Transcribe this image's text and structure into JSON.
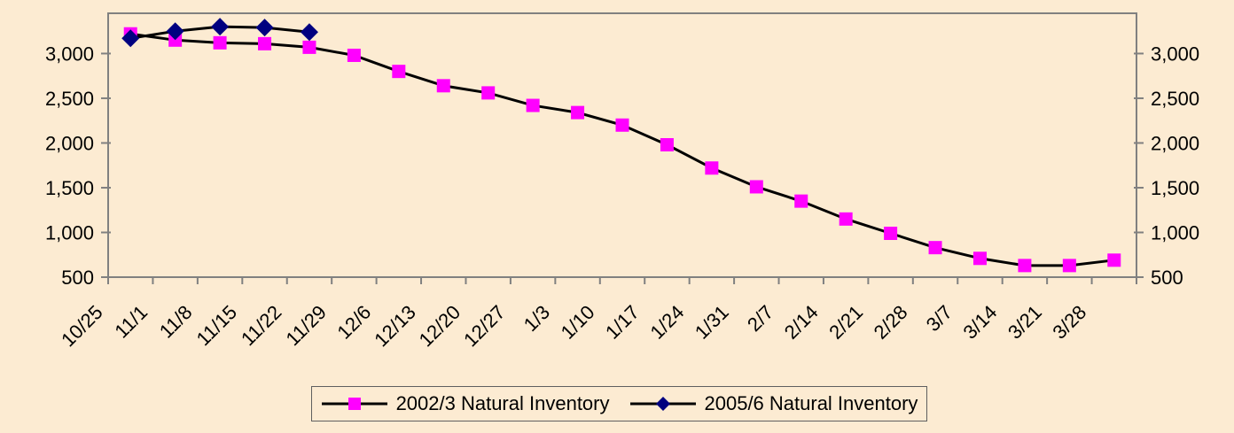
{
  "chart_data": {
    "type": "line",
    "title": "",
    "categories": [
      "10/25",
      "11/1",
      "11/8",
      "11/15",
      "11/22",
      "11/29",
      "12/6",
      "12/13",
      "12/20",
      "12/27",
      "1/3",
      "1/10",
      "1/17",
      "1/24",
      "1/31",
      "2/7",
      "2/14",
      "2/21",
      "2/28",
      "3/7",
      "3/14",
      "3/21",
      "3/28"
    ],
    "series": [
      {
        "name": "2002/3 Natural Inventory",
        "marker": "square",
        "marker_color": "#FF00FF",
        "line_color": "#000000",
        "values": [
          3220,
          3150,
          3120,
          3110,
          3070,
          2980,
          2800,
          2640,
          2560,
          2420,
          2340,
          2200,
          1980,
          1720,
          1510,
          1350,
          1150,
          990,
          830,
          710,
          630,
          630,
          690
        ]
      },
      {
        "name": "2005/6 Natural Inventory",
        "marker": "diamond",
        "marker_color": "#000080",
        "line_color": "#000000",
        "values": [
          3170,
          3250,
          3300,
          3290,
          3240,
          null,
          null,
          null,
          null,
          null,
          null,
          null,
          null,
          null,
          null,
          null,
          null,
          null,
          null,
          null,
          null,
          null,
          null
        ]
      }
    ],
    "y_axis": {
      "min": 500,
      "plot_max": 3450,
      "tick_step": 500,
      "tick_labels": [
        "500",
        "1,000",
        "1,500",
        "2,000",
        "2,500",
        "3,000"
      ],
      "sides": [
        "left",
        "right"
      ]
    },
    "x_axis": {
      "label_rotation": -45,
      "ticks_between_categories": true
    },
    "legend": {
      "position": "bottom"
    },
    "colors": {
      "background": "#FCEBD2",
      "plot_border": "#808080",
      "axis_text": "#000000",
      "series_line": "#000000"
    }
  }
}
